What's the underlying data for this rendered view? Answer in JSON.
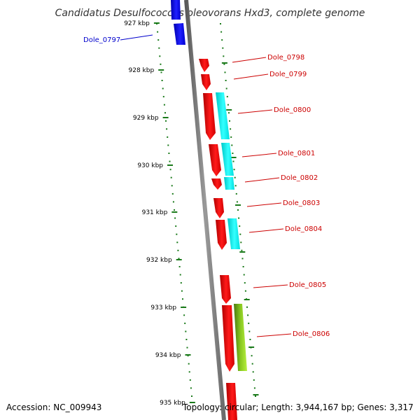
{
  "title": "Candidatus Desulfococcus oleovorans Hxd3, complete genome",
  "footer": {
    "accession": "Accession: NC_009943",
    "topology": "Topology: circular; Length: 3,944,167 bp; Genes: 3,317"
  },
  "ticks": [
    "927 kbp",
    "928 kbp",
    "929 kbp",
    "930 kbp",
    "931 kbp",
    "932 kbp",
    "933 kbp",
    "934 kbp",
    "935 kbp"
  ],
  "genes": [
    {
      "label": "Dole_0797",
      "color": "#0000cc"
    },
    {
      "label": "Dole_0798",
      "color": "#cc0000"
    },
    {
      "label": "Dole_0799",
      "color": "#cc0000"
    },
    {
      "label": "Dole_0800",
      "color": "#cc0000"
    },
    {
      "label": "Dole_0801",
      "color": "#cc0000"
    },
    {
      "label": "Dole_0802",
      "color": "#cc0000"
    },
    {
      "label": "Dole_0803",
      "color": "#cc0000"
    },
    {
      "label": "Dole_0804",
      "color": "#cc0000"
    },
    {
      "label": "Dole_0805",
      "color": "#cc0000"
    },
    {
      "label": "Dole_0806",
      "color": "#cc0000"
    }
  ],
  "colors": {
    "axis": "#808080",
    "dots": "#1a7a1a",
    "gene_fwd": "#ff0000",
    "gene_rev": "#0000ff",
    "feature_cyan": "#00e5e5",
    "feature_green": "#99dd22"
  }
}
